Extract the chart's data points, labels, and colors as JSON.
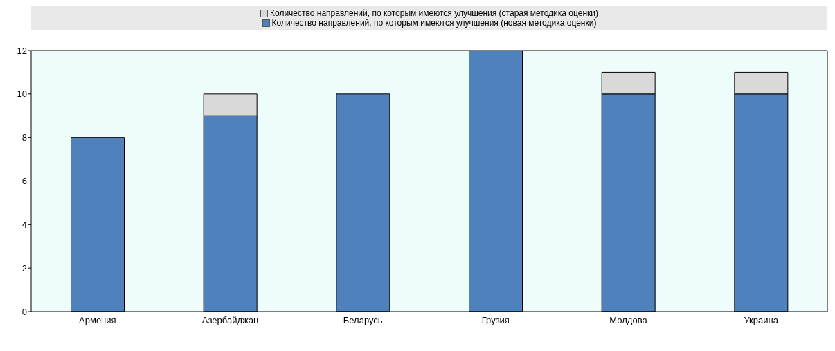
{
  "chart_data": {
    "type": "bar",
    "stacked": true,
    "categories": [
      "Армения",
      "Азербайджан",
      "Беларусь",
      "Грузия",
      "Молдова",
      "Украина"
    ],
    "series": [
      {
        "name": "Количество направлений, по которым имеются улучшения (новая методика оценки)",
        "color": "#4f81bd",
        "values": [
          8,
          9,
          10,
          12,
          10,
          10
        ]
      },
      {
        "name": "Количество направлений, по которым имеются улучшения (старая методика оценки)",
        "color": "#d9d9d9",
        "values": [
          null,
          1,
          null,
          null,
          1,
          1
        ]
      }
    ],
    "ylim": [
      0,
      12
    ],
    "yticks": [
      0,
      2,
      4,
      6,
      8,
      10,
      12
    ],
    "grid": false,
    "legend": "top"
  }
}
